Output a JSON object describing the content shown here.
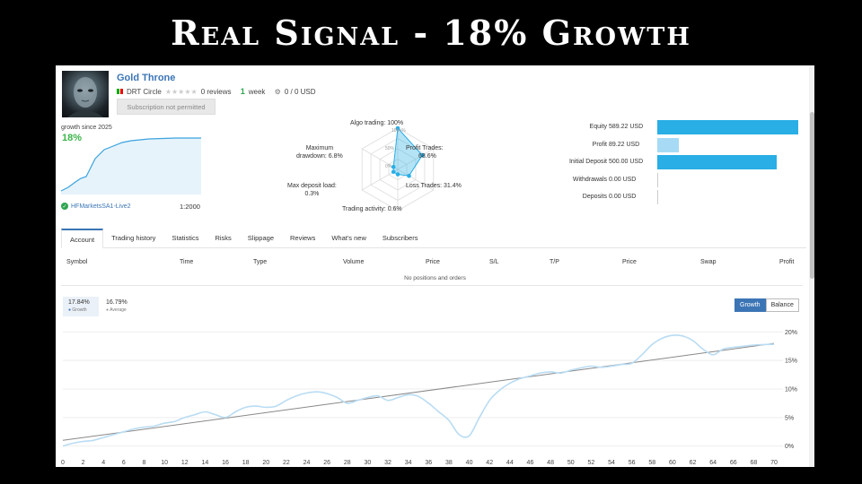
{
  "banner": {
    "title": "Real Signal - 18% Growth"
  },
  "profile": {
    "name": "Gold Throne",
    "author": "DRT Circle",
    "reviews": "0 reviews",
    "age_num": "1",
    "age_unit": "week",
    "price": "0 / 0 USD",
    "subscribe_label": "Subscription not permitted",
    "growth_since": "growth since 2025",
    "growth_value": "18%",
    "broker": "HFMarketsSA1-Live2",
    "leverage": "1:2000"
  },
  "radar": {
    "algo": "Algo trading: 100%",
    "profit": "Profit Trades:",
    "profit_val": "68.6%",
    "loss": "Loss Trades: 31.4%",
    "activity": "Trading activity: 0.6%",
    "max_load": "Max deposit load:",
    "max_load_val": "0.3%",
    "drawdown": "Maximum",
    "drawdown2": "drawdown: 6.8%",
    "ring100": "100+%",
    "ring50": "50%",
    "ring0": "0%",
    "values": [
      100,
      68.6,
      31.4,
      0.6,
      0.3,
      6.8
    ]
  },
  "balance_bars": [
    {
      "label": "Equity",
      "value": "589.22 USD",
      "amount": 589.22,
      "style": "dark"
    },
    {
      "label": "Profit",
      "value": "89.22 USD",
      "amount": 89.22,
      "style": "light"
    },
    {
      "label": "Initial Deposit",
      "value": "500.00 USD",
      "amount": 500.0,
      "style": "dark"
    },
    {
      "label": "Withdrawals",
      "value": "0.00 USD",
      "amount": 0,
      "style": "dark"
    },
    {
      "label": "Deposits",
      "value": "0.00 USD",
      "amount": 0,
      "style": "dark"
    }
  ],
  "tabs": [
    "Account",
    "Trading history",
    "Statistics",
    "Risks",
    "Slippage",
    "Reviews",
    "What's new",
    "Subscribers"
  ],
  "table": {
    "columns": [
      "Symbol",
      "Time",
      "Type",
      "Volume",
      "Price",
      "S/L",
      "T/P",
      "Price",
      "Swap",
      "Profit"
    ],
    "empty": "No positions and orders"
  },
  "stats": {
    "growth_val": "17.84%",
    "growth_label": "Growth",
    "avg_val": "16.79%",
    "avg_label": "Average"
  },
  "toggle": {
    "growth": "Growth",
    "balance": "Balance"
  },
  "colors": {
    "accent": "#3b75b5",
    "bar": "#29aee6",
    "bar_light": "#a7dbf5",
    "green": "#2ea44f"
  },
  "chart_data": {
    "type": "line",
    "x_ticks": [
      "0",
      "2",
      "4",
      "6",
      "8",
      "10",
      "12",
      "14",
      "16",
      "18",
      "20",
      "22",
      "24",
      "26",
      "28",
      "30",
      "32",
      "34",
      "36",
      "38",
      "40",
      "42",
      "44",
      "46",
      "48",
      "50",
      "52",
      "54",
      "56",
      "58",
      "60",
      "62",
      "64",
      "66",
      "68",
      "70"
    ],
    "y_ticks": [
      "20%",
      "15%",
      "10%",
      "5%",
      "0%"
    ],
    "ylim": [
      -1,
      21
    ],
    "xlim": [
      0,
      70
    ],
    "series": [
      {
        "name": "Growth",
        "x": [
          0,
          1,
          2,
          3,
          4,
          5,
          6,
          7,
          8,
          9,
          10,
          11,
          12,
          13,
          14,
          15,
          16,
          17,
          18,
          19,
          20,
          21,
          22,
          23,
          24,
          25,
          26,
          27,
          28,
          29,
          30,
          31,
          32,
          33,
          34,
          35,
          36,
          37,
          38,
          39,
          40,
          41,
          42,
          43,
          44,
          45,
          46,
          47,
          48,
          49,
          50,
          51,
          52,
          53,
          54,
          55,
          56,
          57,
          58,
          59,
          60,
          61,
          62,
          63,
          64,
          65,
          66,
          67,
          68,
          69,
          70
        ],
        "y": [
          0,
          0.5,
          0.8,
          1,
          1.5,
          2,
          2.5,
          3,
          3.3,
          3.5,
          4,
          4.3,
          5,
          5.5,
          6,
          5.5,
          5,
          6,
          6.8,
          7,
          6.8,
          7,
          8,
          8.8,
          9.3,
          9.5,
          9.2,
          8.5,
          7.5,
          8,
          8.5,
          8.8,
          8,
          8.5,
          9,
          8.7,
          7.5,
          6,
          4.5,
          2,
          1.8,
          5,
          8,
          9.8,
          11,
          11.8,
          12.3,
          12.8,
          13,
          12.8,
          13.3,
          13.7,
          14,
          13.8,
          14,
          14.3,
          14.5,
          16,
          17.8,
          18.9,
          19.4,
          19.3,
          18.5,
          17,
          16,
          17,
          17.3,
          17.5,
          17.7,
          17.8,
          17.84
        ]
      },
      {
        "name": "Trend",
        "x": [
          0,
          70
        ],
        "y": [
          1,
          18
        ]
      }
    ]
  }
}
